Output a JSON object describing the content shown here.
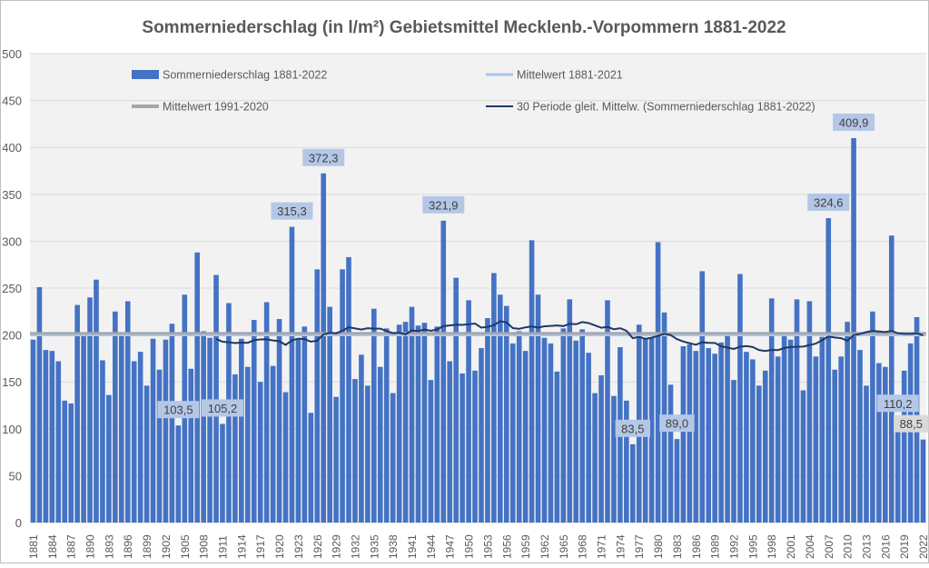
{
  "chart_data": {
    "type": "bar",
    "title": "Sommerniederschlag (in l/m²) Gebietsmittel Mecklenb.-Vorpommern 1881-2022",
    "xlabel": "",
    "ylabel": "",
    "ylim": [
      0,
      500
    ],
    "yticks": [
      0,
      50,
      100,
      150,
      200,
      250,
      300,
      350,
      400,
      450,
      500
    ],
    "grid": true,
    "legend_position": "top",
    "x_start": 1881,
    "x_end": 2022,
    "x_tick_every": 3,
    "series": [
      {
        "name": "Sommerniederschlag 1881-2022",
        "color": "#4472c4",
        "values": [
          195,
          251,
          184,
          183,
          172,
          130,
          127,
          232,
          202,
          240,
          259,
          173,
          136,
          225,
          200,
          236,
          172,
          182,
          146,
          196,
          163,
          195,
          212,
          103.5,
          243,
          164,
          288,
          204,
          197,
          264,
          105.2,
          234,
          158,
          196,
          166,
          216,
          150,
          235,
          167,
          217,
          139,
          315.3,
          196,
          209,
          117,
          270,
          372.3,
          230,
          134,
          270,
          283,
          153,
          179,
          146,
          228,
          166,
          207,
          138,
          211,
          214,
          230,
          210,
          213,
          152,
          209,
          321.9,
          172,
          261,
          159,
          237,
          162,
          186,
          218,
          266,
          243,
          231,
          191,
          204,
          183,
          301,
          243,
          197,
          191,
          161,
          207,
          238,
          194,
          206,
          181,
          138,
          157,
          237,
          135,
          187,
          130,
          83.5,
          211,
          197,
          197,
          299,
          224,
          147,
          89.0,
          188,
          190,
          183,
          268,
          186,
          180,
          192,
          203,
          152,
          265,
          182,
          174,
          146,
          162,
          239,
          177,
          202,
          195,
          238,
          141,
          236,
          177,
          198,
          324.6,
          163,
          177,
          214,
          409.9,
          184,
          146,
          225,
          170,
          166,
          306,
          110.2,
          162,
          191,
          219,
          88.5
        ]
      },
      {
        "name": "Mittelwert 1881-2021",
        "color": "#a9c4eb",
        "from": 1881,
        "to": 2021
      },
      {
        "name": "Mittelwert 1991-2020",
        "color": "#a6a6a6",
        "from": 1991,
        "to": 2020
      },
      {
        "name": "30 Periode gleit. Mittelw. (Sommerniederschlag 1881-2022)",
        "color": "#1f3864",
        "period": 30
      }
    ],
    "data_labels": [
      {
        "year": 1904,
        "text": "103,5",
        "color": "#b4c7e7"
      },
      {
        "year": 1911,
        "text": "105,2",
        "color": "#b4c7e7"
      },
      {
        "year": 1922,
        "text": "315,3",
        "color": "#b4c7e7"
      },
      {
        "year": 1927,
        "text": "372,3",
        "color": "#b4c7e7"
      },
      {
        "year": 1946,
        "text": "321,9",
        "color": "#b4c7e7"
      },
      {
        "year": 1976,
        "text": "83,5",
        "color": "#b4c7e7"
      },
      {
        "year": 1983,
        "text": "89,0",
        "color": "#b4c7e7"
      },
      {
        "year": 2007,
        "text": "324,6",
        "color": "#b4c7e7"
      },
      {
        "year": 2011,
        "text": "409,9",
        "color": "#b4c7e7"
      },
      {
        "year": 2018,
        "text": "110,2",
        "color": "#b4c7e7"
      },
      {
        "year": 2022,
        "text": "88,5",
        "color": "#d9d9d9"
      }
    ]
  }
}
